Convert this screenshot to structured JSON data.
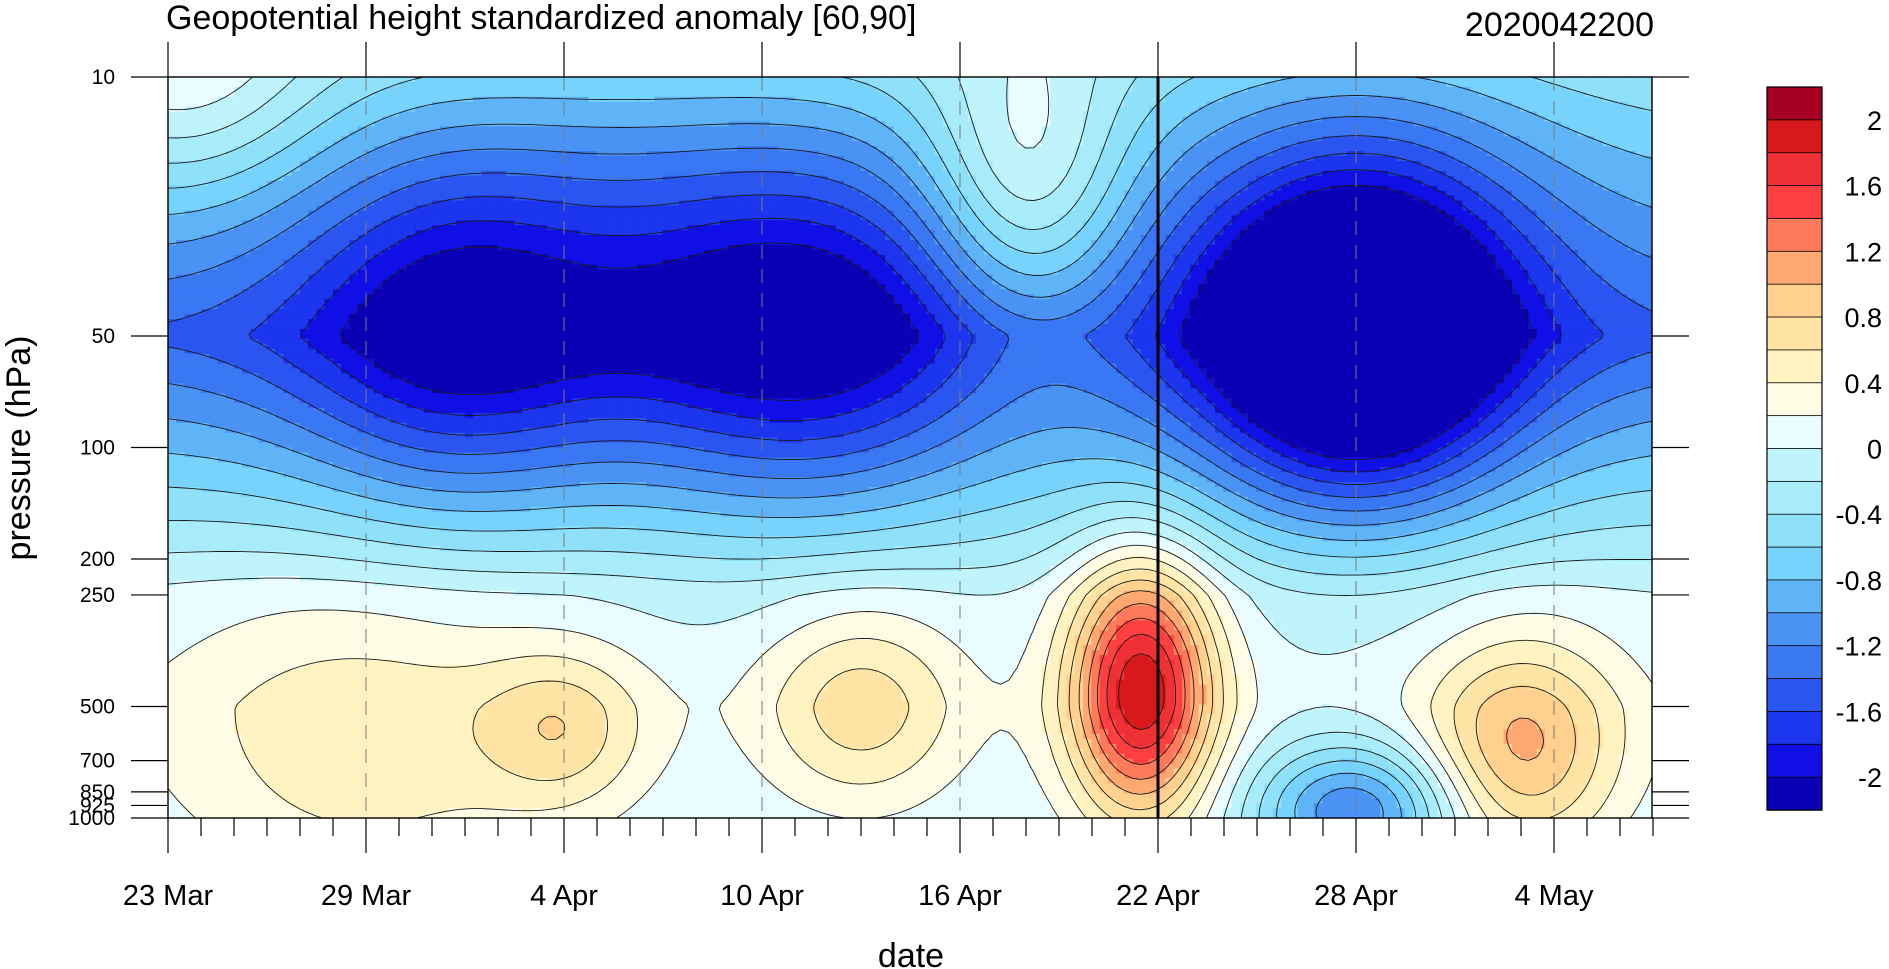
{
  "chart_data": {
    "type": "contour",
    "title": "Geopotential height standardized anomaly [60,90]",
    "date_label": "2020042200",
    "xlabel": "date",
    "ylabel": "pressure (hPa)",
    "x_ticks": [
      "23 Mar",
      "29 Mar",
      "4 Apr",
      "10 Apr",
      "16 Apr",
      "22 Apr",
      "28 Apr",
      "4 May"
    ],
    "x_range": [
      "23 Mar",
      "7 May"
    ],
    "y_ticks": [
      10,
      50,
      100,
      200,
      250,
      500,
      700,
      850,
      925,
      1000
    ],
    "y_range": [
      10,
      1000
    ],
    "y_scale": "log",
    "y_reversed": true,
    "grid": "dashed vertical lines at labeled dates",
    "reference_line": "22 Apr",
    "colorbar": {
      "labels": [
        "2",
        "1.6",
        "1.2",
        "0.8",
        "0.4",
        "0",
        "-0.4",
        "-0.8",
        "-1.2",
        "-1.6",
        "-2"
      ],
      "colors": [
        "#a50021",
        "#d7191c",
        "#ef3034",
        "#ff4040",
        "#ff7a5a",
        "#ffa872",
        "#ffd08e",
        "#ffe4a6",
        "#fff3c2",
        "#fffce6",
        "#e9fcff",
        "#bff4fc",
        "#a8ebfa",
        "#8fe0f9",
        "#77d3fb",
        "#5fb4f8",
        "#4a93f5",
        "#3977f3",
        "#2a55f1",
        "#1c35ee",
        "#1010e6",
        "#0a00b5"
      ]
    },
    "levels": [
      -2.2,
      -2.0,
      -1.8,
      -1.6,
      -1.4,
      -1.2,
      -1.0,
      -0.8,
      -0.6,
      -0.4,
      -0.2,
      0,
      0.2,
      0.4,
      0.6,
      0.8,
      1.0,
      1.2,
      1.4,
      1.6,
      1.8,
      2.0
    ],
    "value_range": [
      -2.2,
      2.2
    ],
    "features": [
      {
        "day": 0.5,
        "pressure": 10,
        "dx": 4,
        "dy": 0.35,
        "amp": 0.6
      },
      {
        "day": 8.5,
        "pressure": 50,
        "dx": 4.5,
        "dy": 0.5,
        "amp": -0.7
      },
      {
        "day": 19.5,
        "pressure": 50,
        "dx": 5.2,
        "dy": 0.5,
        "amp": -0.8
      },
      {
        "day": 13.5,
        "pressure": 35,
        "dx": 9,
        "dy": 0.55,
        "amp": -0.5
      },
      {
        "day": 36,
        "pressure": 52,
        "dx": 4.5,
        "dy": 0.45,
        "amp": -1.9
      },
      {
        "day": 36,
        "pressure": 22,
        "dx": 7,
        "dy": 0.6,
        "amp": -0.4
      },
      {
        "day": 29.5,
        "pressure": 450,
        "dx": 2.2,
        "dy": 0.35,
        "amp": 1.9
      },
      {
        "day": 21,
        "pressure": 500,
        "dx": 3,
        "dy": 0.28,
        "amp": 0.65
      },
      {
        "day": 12,
        "pressure": 580,
        "dx": 2.5,
        "dy": 0.22,
        "amp": 0.55
      },
      {
        "day": 41,
        "pressure": 650,
        "dx": 3,
        "dy": 0.3,
        "amp": 1.0
      },
      {
        "day": 6,
        "pressure": 650,
        "dx": 6,
        "dy": 0.45,
        "amp": 0.5
      },
      {
        "day": 36,
        "pressure": 950,
        "dx": 3,
        "dy": 0.18,
        "amp": -1.2
      },
      {
        "day": 26,
        "pressure": 20,
        "dx": 3,
        "dy": 0.4,
        "amp": 0.9
      }
    ],
    "base_profile": [
      {
        "pressure": 10,
        "value": -0.6
      },
      {
        "pressure": 50,
        "value": -1.6
      },
      {
        "pressure": 100,
        "value": -1.0
      },
      {
        "pressure": 200,
        "value": -0.4
      },
      {
        "pressure": 250,
        "value": -0.2
      },
      {
        "pressure": 500,
        "value": -0.1
      },
      {
        "pressure": 1000,
        "value": -0.2
      }
    ]
  }
}
